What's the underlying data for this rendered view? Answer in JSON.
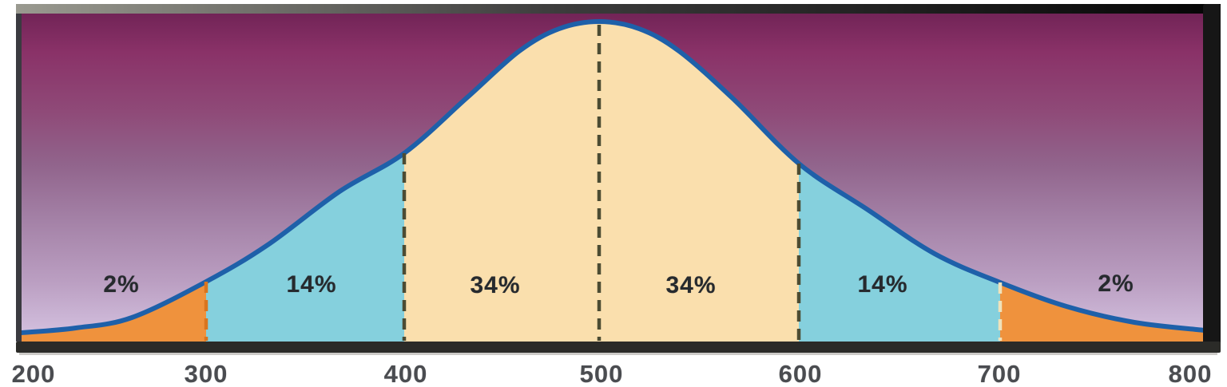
{
  "chart_data": {
    "type": "area",
    "description": "Normal (bell) curve divided into standard-deviation bands with percentage labels",
    "x_ticks": [
      "200",
      "300",
      "400",
      "500",
      "600",
      "700",
      "800"
    ],
    "x_range": [
      200,
      800
    ],
    "mean": 500,
    "std_dev": 100,
    "grid": false,
    "legend": null,
    "regions": [
      {
        "from": 200,
        "to": 300,
        "label": "2%",
        "value": 2,
        "color_key": "tail_orange"
      },
      {
        "from": 300,
        "to": 400,
        "label": "14%",
        "value": 14,
        "color_key": "band_blue"
      },
      {
        "from": 400,
        "to": 500,
        "label": "34%",
        "value": 34,
        "color_key": "center_cream"
      },
      {
        "from": 500,
        "to": 600,
        "label": "34%",
        "value": 34,
        "color_key": "center_cream"
      },
      {
        "from": 600,
        "to": 700,
        "label": "14%",
        "value": 14,
        "color_key": "band_blue"
      },
      {
        "from": 700,
        "to": 800,
        "label": "2%",
        "value": 2,
        "color_key": "tail_orange"
      }
    ],
    "dashed_boundaries": [
      {
        "x": 300,
        "dash_color_key": "dash_orange"
      },
      {
        "x": 400,
        "dash_color_key": "dash_dark"
      },
      {
        "x": 500,
        "dash_color_key": "dash_dark"
      },
      {
        "x": 600,
        "dash_color_key": "dash_dark"
      },
      {
        "x": 700,
        "dash_color_key": "dash_cream"
      }
    ]
  },
  "colors": {
    "tail_orange": "#ef923d",
    "band_blue": "#85d0dd",
    "center_cream": "#fadfad",
    "curve_stroke": "#1e60a9",
    "dash_dark": "#4c4c33",
    "dash_orange": "#d9751f",
    "dash_cream": "#efe2bb",
    "bg_gradient_top": "#722457",
    "bg_gradient_bottom": "#d6c4e2",
    "frame_dark": "#161616",
    "axis_text": "#4a4c50",
    "pct_text": "#262a2e"
  }
}
